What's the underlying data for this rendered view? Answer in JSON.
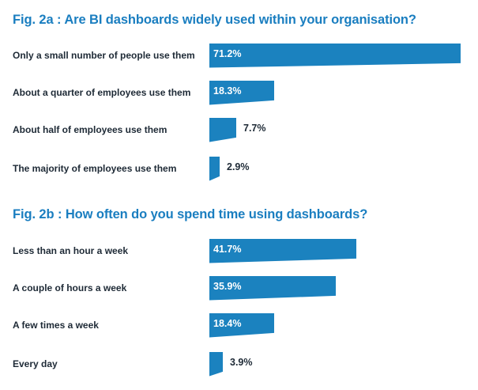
{
  "colors": {
    "bar": "#1b82bf",
    "title": "#1a7ec0",
    "text": "#1e2a36"
  },
  "chart_data": [
    {
      "type": "bar",
      "orientation": "horizontal",
      "title": "Fig. 2a : Are BI dashboards widely used within your organisation?",
      "categories": [
        "Only a small number of people use them",
        "About a quarter of employees use them",
        "About half of employees use them",
        "The majority of employees use them"
      ],
      "values": [
        71.2,
        18.3,
        7.7,
        2.9
      ],
      "value_labels": [
        "71.2%",
        "18.3%",
        "7.7%",
        "2.9%"
      ],
      "unit": "%",
      "xlim": [
        0,
        71.2
      ],
      "grid": false
    },
    {
      "type": "bar",
      "orientation": "horizontal",
      "title": "Fig. 2b : How often do you spend time using dashboards?",
      "categories": [
        "Less than an hour a week",
        "A couple of hours a week",
        "A few times a week",
        "Every day"
      ],
      "values": [
        41.7,
        35.9,
        18.4,
        3.9
      ],
      "value_labels": [
        "41.7%",
        "35.9%",
        "18.4%",
        "3.9%"
      ],
      "unit": "%",
      "xlim": [
        0,
        71.2
      ],
      "grid": false
    }
  ]
}
